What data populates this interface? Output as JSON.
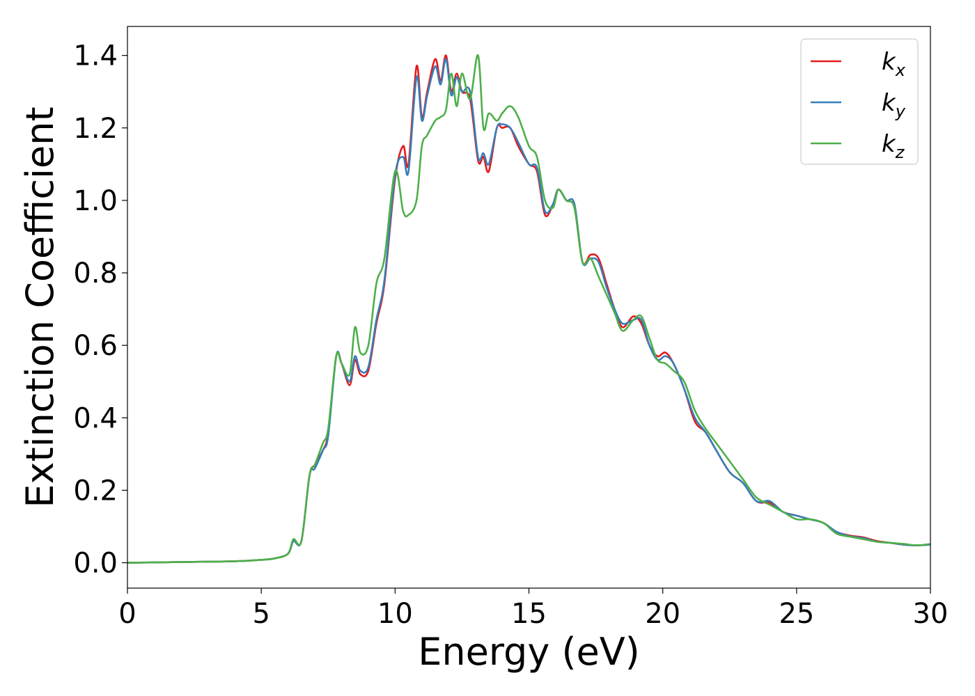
{
  "chart_data": {
    "type": "line",
    "title": "",
    "xlabel": "Energy (eV)",
    "ylabel": "Extinction Coefficient",
    "xlim": [
      0,
      30
    ],
    "ylim": [
      -0.07,
      1.48
    ],
    "xticks": [
      0,
      5,
      10,
      15,
      20,
      25,
      30
    ],
    "xtick_labels": [
      "0",
      "5",
      "10",
      "15",
      "20",
      "25",
      "30"
    ],
    "yticks": [
      0.0,
      0.2,
      0.4,
      0.6,
      0.8,
      1.0,
      1.2,
      1.4
    ],
    "ytick_labels": [
      "0.0",
      "0.2",
      "0.4",
      "0.6",
      "0.8",
      "1.0",
      "1.2",
      "1.4"
    ],
    "grid": false,
    "legend_position": "top-right",
    "series": [
      {
        "name": "k_x",
        "label_base": "k",
        "label_sub": "x",
        "color": "#e41a1c",
        "x": [
          0,
          2,
          4,
          5,
          5.5,
          6,
          6.2,
          6.5,
          6.8,
          7.0,
          7.3,
          7.5,
          7.8,
          8.0,
          8.3,
          8.5,
          8.7,
          9.0,
          9.3,
          9.6,
          10.0,
          10.3,
          10.5,
          10.8,
          11.0,
          11.2,
          11.5,
          11.7,
          11.9,
          12.1,
          12.3,
          12.5,
          12.8,
          13.1,
          13.3,
          13.5,
          13.8,
          14.0,
          14.3,
          14.6,
          15.0,
          15.3,
          15.6,
          15.9,
          16.1,
          16.4,
          16.7,
          17.0,
          17.3,
          17.6,
          17.9,
          18.2,
          18.5,
          18.9,
          19.2,
          19.5,
          19.8,
          20.1,
          20.4,
          20.8,
          21.2,
          21.6,
          22.0,
          22.5,
          23.0,
          23.5,
          24.0,
          24.5,
          25.0,
          25.5,
          26.0,
          26.5,
          27.0,
          27.5,
          28.0,
          28.5,
          29.0,
          29.5,
          30.0
        ],
        "values": [
          0.0,
          0.002,
          0.004,
          0.008,
          0.012,
          0.025,
          0.06,
          0.06,
          0.24,
          0.27,
          0.31,
          0.36,
          0.57,
          0.55,
          0.49,
          0.56,
          0.52,
          0.53,
          0.66,
          0.77,
          1.06,
          1.15,
          1.1,
          1.37,
          1.23,
          1.3,
          1.39,
          1.33,
          1.4,
          1.3,
          1.35,
          1.3,
          1.28,
          1.11,
          1.12,
          1.08,
          1.2,
          1.2,
          1.2,
          1.15,
          1.1,
          1.08,
          0.96,
          0.99,
          1.03,
          1.0,
          0.98,
          0.83,
          0.85,
          0.84,
          0.77,
          0.7,
          0.65,
          0.68,
          0.66,
          0.6,
          0.57,
          0.58,
          0.55,
          0.48,
          0.39,
          0.36,
          0.31,
          0.25,
          0.22,
          0.17,
          0.165,
          0.14,
          0.13,
          0.12,
          0.11,
          0.085,
          0.075,
          0.07,
          0.06,
          0.055,
          0.05,
          0.048,
          0.05
        ]
      },
      {
        "name": "k_y",
        "label_base": "k",
        "label_sub": "y",
        "color": "#377eb8",
        "x": [
          0,
          2,
          4,
          5,
          5.5,
          6,
          6.2,
          6.5,
          6.8,
          7.0,
          7.3,
          7.5,
          7.8,
          8.0,
          8.3,
          8.5,
          8.7,
          9.0,
          9.3,
          9.6,
          10.0,
          10.3,
          10.5,
          10.8,
          11.0,
          11.2,
          11.5,
          11.7,
          11.9,
          12.1,
          12.3,
          12.5,
          12.8,
          13.1,
          13.3,
          13.5,
          13.8,
          14.0,
          14.3,
          14.6,
          15.0,
          15.3,
          15.6,
          15.9,
          16.1,
          16.4,
          16.7,
          17.0,
          17.3,
          17.6,
          17.9,
          18.2,
          18.5,
          18.9,
          19.2,
          19.5,
          19.8,
          20.1,
          20.4,
          20.8,
          21.2,
          21.6,
          22.0,
          22.5,
          23.0,
          23.5,
          24.0,
          24.5,
          25.0,
          25.5,
          26.0,
          26.5,
          27.0,
          27.5,
          28.0,
          28.5,
          29.0,
          29.5,
          30.0
        ],
        "values": [
          0.0,
          0.002,
          0.004,
          0.008,
          0.012,
          0.025,
          0.06,
          0.06,
          0.24,
          0.26,
          0.31,
          0.35,
          0.57,
          0.55,
          0.5,
          0.57,
          0.53,
          0.54,
          0.67,
          0.78,
          1.07,
          1.12,
          1.08,
          1.34,
          1.22,
          1.29,
          1.37,
          1.32,
          1.39,
          1.29,
          1.34,
          1.3,
          1.3,
          1.12,
          1.13,
          1.1,
          1.2,
          1.21,
          1.2,
          1.16,
          1.1,
          1.09,
          0.97,
          0.99,
          1.03,
          1.0,
          0.99,
          0.83,
          0.84,
          0.83,
          0.76,
          0.7,
          0.66,
          0.67,
          0.67,
          0.6,
          0.56,
          0.57,
          0.55,
          0.48,
          0.4,
          0.36,
          0.31,
          0.25,
          0.22,
          0.17,
          0.17,
          0.14,
          0.13,
          0.12,
          0.11,
          0.085,
          0.073,
          0.068,
          0.058,
          0.055,
          0.05,
          0.048,
          0.05
        ]
      },
      {
        "name": "k_z",
        "label_base": "k",
        "label_sub": "z",
        "color": "#4daf4a",
        "x": [
          0,
          2,
          4,
          5,
          5.5,
          6,
          6.2,
          6.5,
          6.8,
          7.0,
          7.3,
          7.5,
          7.8,
          8.0,
          8.3,
          8.5,
          8.7,
          9.0,
          9.3,
          9.6,
          10.0,
          10.3,
          10.5,
          10.8,
          11.0,
          11.2,
          11.5,
          11.7,
          11.9,
          12.1,
          12.3,
          12.5,
          12.8,
          13.1,
          13.3,
          13.5,
          13.8,
          14.0,
          14.3,
          14.6,
          15.0,
          15.3,
          15.6,
          15.9,
          16.1,
          16.4,
          16.7,
          17.0,
          17.3,
          17.6,
          17.9,
          18.2,
          18.5,
          18.9,
          19.2,
          19.5,
          19.8,
          20.1,
          20.4,
          20.8,
          21.2,
          21.6,
          22.0,
          22.5,
          23.0,
          23.5,
          24.0,
          24.5,
          25.0,
          25.5,
          26.0,
          26.5,
          27.0,
          27.5,
          28.0,
          28.5,
          29.0,
          29.5,
          30.0
        ],
        "values": [
          0.0,
          0.002,
          0.004,
          0.008,
          0.012,
          0.025,
          0.065,
          0.06,
          0.24,
          0.27,
          0.33,
          0.37,
          0.57,
          0.55,
          0.52,
          0.65,
          0.58,
          0.6,
          0.77,
          0.84,
          1.08,
          0.97,
          0.96,
          1.0,
          1.15,
          1.18,
          1.22,
          1.23,
          1.25,
          1.35,
          1.26,
          1.35,
          1.28,
          1.4,
          1.2,
          1.24,
          1.22,
          1.24,
          1.26,
          1.23,
          1.15,
          1.12,
          1.0,
          0.98,
          1.03,
          1.0,
          0.98,
          0.83,
          0.84,
          0.79,
          0.74,
          0.69,
          0.64,
          0.67,
          0.68,
          0.62,
          0.56,
          0.55,
          0.53,
          0.5,
          0.42,
          0.37,
          0.33,
          0.28,
          0.23,
          0.18,
          0.16,
          0.14,
          0.12,
          0.12,
          0.11,
          0.08,
          0.072,
          0.065,
          0.058,
          0.055,
          0.052,
          0.048,
          0.052
        ]
      }
    ]
  }
}
